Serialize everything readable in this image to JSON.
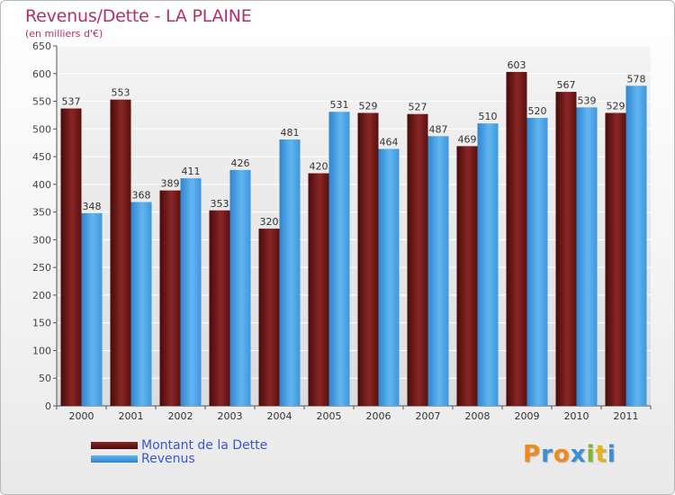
{
  "title": "Revenus/Dette - LA PLAINE",
  "subtitle": "(en milliers d'€)",
  "chart_data": {
    "type": "bar",
    "title": "Revenus/Dette - LA PLAINE",
    "subtitle": "(en milliers d'€)",
    "categories": [
      "2000",
      "2001",
      "2002",
      "2003",
      "2004",
      "2005",
      "2006",
      "2007",
      "2008",
      "2009",
      "2010",
      "2011"
    ],
    "series": [
      {
        "name": "Montant de la Dette",
        "color": "#7a1a1a",
        "values": [
          537,
          553,
          389,
          353,
          320,
          420,
          529,
          527,
          469,
          603,
          567,
          529
        ]
      },
      {
        "name": "Revenus",
        "color": "#4aa3e8",
        "values": [
          348,
          368,
          411,
          426,
          481,
          531,
          464,
          487,
          510,
          520,
          539,
          578
        ]
      }
    ],
    "ylim": [
      0,
      650
    ],
    "yticks": [
      0,
      50,
      100,
      150,
      200,
      250,
      300,
      350,
      400,
      450,
      500,
      550,
      600,
      650
    ],
    "grid": true,
    "legend": "bottom-left"
  },
  "legend": [
    {
      "label": "Montant de la Dette",
      "color": "#6e1515"
    },
    {
      "label": "Revenus",
      "color": "#4aa3e8"
    }
  ],
  "logo": {
    "letters": [
      "P",
      "r",
      "o",
      "x",
      "i",
      "t",
      "i"
    ],
    "colors": [
      "#f08a1e",
      "#3a8fd8",
      "#f08a1e",
      "#3a8fd8",
      "#7ab82e",
      "#e8b21a",
      "#3a8fd8"
    ]
  }
}
